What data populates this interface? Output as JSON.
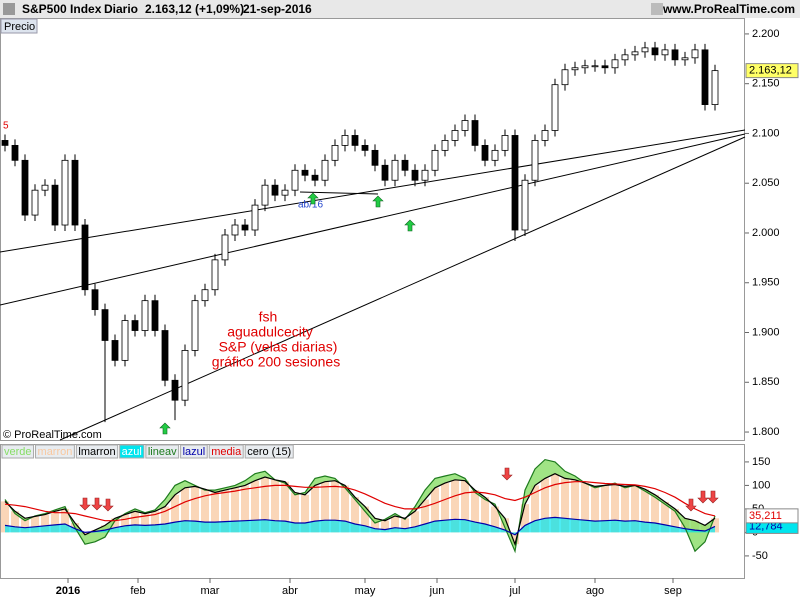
{
  "header": {
    "title": "S&P500 Index",
    "period": "Diario",
    "quote": "2.163,12 (+1,09%)",
    "date": "21-sep-2016",
    "site": "www.ProRealTime.com",
    "panel": "Precio",
    "copyright": "© ProRealTime.com"
  },
  "annotations": {
    "marker": "5",
    "line_label": "ab/16",
    "note": [
      "fsh",
      "aguadulcecity",
      "S&P (velas diarias)",
      "gráfico 200 sesiones"
    ]
  },
  "chart_data": [
    {
      "type": "candlestick",
      "open": [
        2093,
        2088,
        2073,
        2018,
        2043,
        2048,
        2008,
        2073,
        2008,
        1943,
        1923,
        1892,
        1872,
        1912,
        1902,
        1932,
        1902,
        1852,
        1832,
        1882,
        1932,
        1943,
        1973,
        1998,
        2008,
        2003,
        2028,
        2048,
        2038,
        2043,
        2063,
        2058,
        2053,
        2073,
        2088,
        2098,
        2088,
        2083,
        2068,
        2053,
        2073,
        2063,
        2053,
        2063,
        2083,
        2093,
        2103,
        2113,
        2088,
        2073,
        2083,
        2098,
        2003,
        2053,
        2093,
        2103,
        2149,
        2164,
        2166,
        2168,
        2168,
        2166,
        2174,
        2179,
        2182,
        2186,
        2179,
        2184,
        2174,
        2176,
        2184,
        2129
      ],
      "high": [
        2099,
        2094,
        2079,
        2049,
        2054,
        2054,
        2079,
        2079,
        2014,
        1949,
        1929,
        1898,
        1918,
        1918,
        1938,
        1938,
        1908,
        1858,
        1888,
        1938,
        1949,
        1979,
        2004,
        2014,
        2014,
        2034,
        2054,
        2054,
        2049,
        2069,
        2069,
        2064,
        2079,
        2094,
        2104,
        2104,
        2094,
        2089,
        2074,
        2079,
        2079,
        2069,
        2069,
        2089,
        2099,
        2109,
        2119,
        2119,
        2094,
        2089,
        2104,
        2104,
        2059,
        2099,
        2109,
        2155,
        2170,
        2172,
        2174,
        2174,
        2174,
        2180,
        2185,
        2188,
        2192,
        2192,
        2190,
        2190,
        2182,
        2190,
        2190,
        2169
      ],
      "low": [
        2082,
        2067,
        2012,
        2012,
        2037,
        2002,
        2002,
        2002,
        1937,
        1917,
        1810,
        1866,
        1866,
        1896,
        1896,
        1896,
        1846,
        1812,
        1826,
        1876,
        1926,
        1937,
        1967,
        1992,
        1997,
        1997,
        2022,
        2032,
        2032,
        2037,
        2052,
        2047,
        2047,
        2067,
        2082,
        2082,
        2077,
        2062,
        2047,
        2047,
        2057,
        2047,
        2047,
        2057,
        2077,
        2087,
        2097,
        2082,
        2067,
        2067,
        2077,
        1992,
        1997,
        2047,
        2087,
        2097,
        2143,
        2158,
        2160,
        2162,
        2160,
        2160,
        2168,
        2173,
        2176,
        2173,
        2173,
        2168,
        2168,
        2170,
        2123,
        2123
      ],
      "close": [
        2088,
        2073,
        2018,
        2043,
        2048,
        2008,
        2073,
        2008,
        1943,
        1923,
        1892,
        1872,
        1912,
        1902,
        1932,
        1902,
        1852,
        1832,
        1882,
        1932,
        1943,
        1973,
        1998,
        2008,
        2003,
        2028,
        2048,
        2038,
        2043,
        2063,
        2058,
        2053,
        2073,
        2088,
        2098,
        2088,
        2083,
        2068,
        2053,
        2073,
        2063,
        2053,
        2063,
        2083,
        2093,
        2103,
        2113,
        2088,
        2073,
        2083,
        2098,
        2003,
        2053,
        2093,
        2103,
        2149,
        2164,
        2166,
        2168,
        2168,
        2166,
        2174,
        2179,
        2182,
        2186,
        2179,
        2184,
        2174,
        2176,
        2184,
        2129,
        2163.12
      ],
      "last_label": "2.163,12",
      "up_color": "#ffffff",
      "down_color": "#000000",
      "last_color": "#ffff66",
      "xlim": [
        -0.5,
        74
      ],
      "xticks": [
        {
          "value": 6.3,
          "label": "2016"
        },
        {
          "value": 13.3,
          "label": "feb"
        },
        {
          "value": 20.5,
          "label": "mar"
        },
        {
          "value": 28.5,
          "label": "abr"
        },
        {
          "value": 36,
          "label": "may"
        },
        {
          "value": 43.2,
          "label": "jun"
        },
        {
          "value": 51,
          "label": "jul"
        },
        {
          "value": 59,
          "label": "ago"
        },
        {
          "value": 66.8,
          "label": "sep"
        }
      ],
      "ylim": [
        1792,
        2216
      ],
      "yticks": [
        {
          "value": 2200,
          "label": "2.200"
        },
        {
          "value": 2150,
          "label": "2.150"
        },
        {
          "value": 2100,
          "label": "2.100"
        },
        {
          "value": 2050,
          "label": "2.050"
        },
        {
          "value": 2000,
          "label": "2.000"
        },
        {
          "value": 1950,
          "label": "1.950"
        },
        {
          "value": 1900,
          "label": "1.900"
        },
        {
          "value": 1850,
          "label": "1.850"
        },
        {
          "value": 1800,
          "label": "1.800"
        }
      ]
    },
    {
      "type": "line",
      "series": [
        {
          "name": "verde",
          "color": "#88dd66"
        },
        {
          "name": "marron",
          "color": "#f8c8a0"
        },
        {
          "name": "lmarron",
          "color": "#000000",
          "values": [
            66,
            45,
            30,
            34,
            38,
            45,
            50,
            20,
            -5,
            5,
            15,
            30,
            38,
            45,
            40,
            45,
            55,
            80,
            95,
            98,
            92,
            85,
            90,
            95,
            100,
            110,
            118,
            112,
            108,
            85,
            80,
            100,
            108,
            110,
            100,
            75,
            55,
            30,
            25,
            35,
            30,
            45,
            70,
            95,
            105,
            112,
            110,
            90,
            75,
            55,
            30,
            -25,
            60,
            100,
            115,
            125,
            115,
            112,
            105,
            98,
            100,
            102,
            98,
            100,
            92,
            80,
            65,
            50,
            30,
            25,
            15,
            30
          ]
        },
        {
          "name": "azul",
          "color": "#00e5ee"
        },
        {
          "name": "lineav",
          "color": "#1e7b1e",
          "values": [
            70,
            40,
            25,
            35,
            40,
            48,
            55,
            10,
            -25,
            -20,
            -10,
            25,
            40,
            50,
            42,
            48,
            70,
            100,
            110,
            100,
            90,
            90,
            95,
            100,
            110,
            125,
            130,
            112,
            105,
            80,
            85,
            115,
            120,
            115,
            95,
            70,
            45,
            20,
            28,
            40,
            28,
            55,
            90,
            115,
            120,
            125,
            115,
            85,
            70,
            60,
            10,
            -40,
            90,
            135,
            155,
            150,
            130,
            120,
            105,
            95,
            100,
            105,
            95,
            100,
            88,
            75,
            60,
            45,
            10,
            -40,
            -20,
            35
          ]
        },
        {
          "name": "lazul",
          "color": "#0000aa",
          "values": [
            15,
            12,
            10,
            12,
            14,
            16,
            18,
            8,
            0,
            2,
            5,
            10,
            14,
            16,
            15,
            16,
            18,
            22,
            25,
            24,
            22,
            22,
            23,
            24,
            25,
            26,
            27,
            25,
            24,
            20,
            20,
            24,
            26,
            26,
            24,
            18,
            14,
            8,
            6,
            10,
            8,
            12,
            18,
            24,
            26,
            28,
            27,
            22,
            18,
            12,
            5,
            -5,
            15,
            25,
            30,
            32,
            30,
            28,
            26,
            24,
            25,
            26,
            24,
            25,
            22,
            20,
            16,
            12,
            8,
            5,
            3,
            12.784
          ],
          "last_label": "12,784"
        },
        {
          "name": "media",
          "color": "#e00000",
          "values": [
            60,
            58,
            55,
            50,
            45,
            42,
            42,
            40,
            35,
            30,
            25,
            25,
            28,
            32,
            35,
            38,
            45,
            55,
            65,
            72,
            78,
            82,
            85,
            88,
            92,
            95,
            98,
            100,
            100,
            98,
            96,
            96,
            97,
            98,
            96,
            90,
            82,
            72,
            62,
            55,
            50,
            50,
            55,
            62,
            70,
            78,
            84,
            86,
            84,
            80,
            72,
            68,
            75,
            85,
            95,
            102,
            106,
            108,
            108,
            106,
            104,
            103,
            102,
            101,
            98,
            93,
            85,
            75,
            62,
            50,
            40,
            35.211
          ],
          "last_label": "35,211"
        },
        {
          "name": "cero (15)",
          "color": "#000000"
        }
      ],
      "ylim": [
        -97,
        186
      ],
      "yticks": [
        150,
        100,
        50,
        0,
        -50
      ]
    }
  ]
}
